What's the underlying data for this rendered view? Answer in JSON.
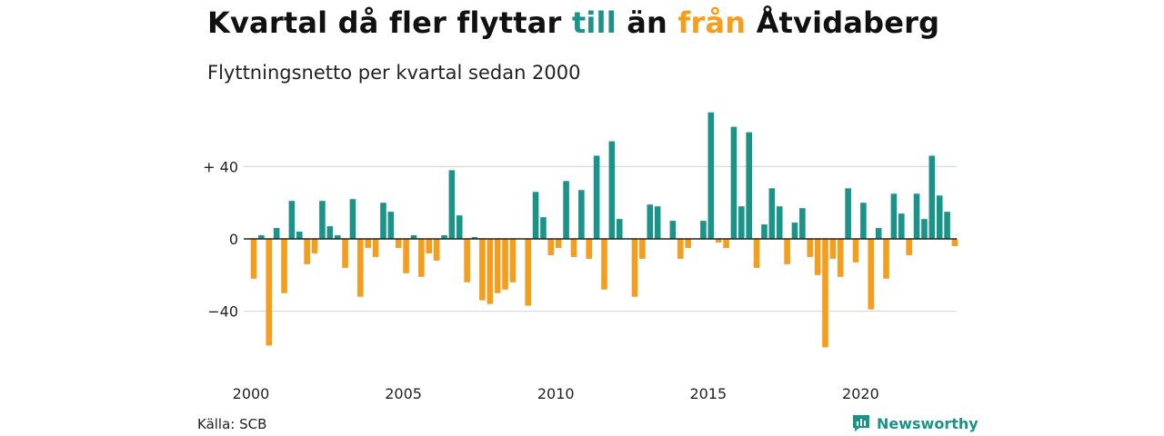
{
  "title": {
    "part1": "Kvartal då fler flyttar ",
    "till": "till",
    "part2": " än ",
    "fran": "från",
    "part3": " Åtvidaberg"
  },
  "subtitle": "Flyttningsnetto per kvartal sedan 2000",
  "source": "Källa: SCB",
  "brand": "Newsworthy",
  "colors": {
    "positive": "#1a9488",
    "negative": "#f59d1c",
    "grid": "#d9d9d9",
    "zero": "#222222"
  },
  "chart_data": {
    "type": "bar",
    "title": "Kvartal då fler flyttar till än från Åtvidaberg",
    "subtitle": "Flyttningsnetto per kvartal sedan 2000",
    "xlabel": "",
    "ylabel": "",
    "ylim": [
      -65,
      72
    ],
    "yticks": [
      {
        "value": 40,
        "label": "+ 40"
      },
      {
        "value": 0,
        "label": "0"
      },
      {
        "value": -40,
        "label": "−40"
      }
    ],
    "x_tick_labels": [
      "2000",
      "2005",
      "2010",
      "2015",
      "2020"
    ],
    "start_year": 2000,
    "grid": true,
    "categories": [
      "2000 K1",
      "2000 K2",
      "2000 K3",
      "2000 K4",
      "2001 K1",
      "2001 K2",
      "2001 K3",
      "2001 K4",
      "2002 K1",
      "2002 K2",
      "2002 K3",
      "2002 K4",
      "2003 K1",
      "2003 K2",
      "2003 K3",
      "2003 K4",
      "2004 K1",
      "2004 K2",
      "2004 K3",
      "2004 K4",
      "2005 K1",
      "2005 K2",
      "2005 K3",
      "2005 K4",
      "2006 K1",
      "2006 K2",
      "2006 K3",
      "2006 K4",
      "2007 K1",
      "2007 K2",
      "2007 K3",
      "2007 K4",
      "2008 K1",
      "2008 K2",
      "2008 K3",
      "2008 K4",
      "2009 K1",
      "2009 K2",
      "2009 K3",
      "2009 K4",
      "2010 K1",
      "2010 K2",
      "2010 K3",
      "2010 K4",
      "2011 K1",
      "2011 K2",
      "2011 K3",
      "2011 K4",
      "2012 K1",
      "2012 K2",
      "2012 K3",
      "2012 K4",
      "2013 K1",
      "2013 K2",
      "2013 K3",
      "2013 K4",
      "2014 K1",
      "2014 K2",
      "2014 K3",
      "2014 K4",
      "2015 K1",
      "2015 K2",
      "2015 K3",
      "2015 K4",
      "2016 K1",
      "2016 K2",
      "2016 K3",
      "2016 K4",
      "2017 K1",
      "2017 K2",
      "2017 K3",
      "2017 K4",
      "2018 K1",
      "2018 K2",
      "2018 K3",
      "2018 K4",
      "2019 K1",
      "2019 K2",
      "2019 K3",
      "2019 K4",
      "2020 K1",
      "2020 K2",
      "2020 K3",
      "2020 K4",
      "2021 K1",
      "2021 K2",
      "2021 K3",
      "2021 K4",
      "2022 K1",
      "2022 K2",
      "2022 K3",
      "2022 K4",
      "2023 K1"
    ],
    "values": [
      -22,
      2,
      -59,
      6,
      -30,
      21,
      4,
      -14,
      -8,
      21,
      7,
      2,
      -16,
      22,
      -32,
      -5,
      -10,
      20,
      15,
      -5,
      -19,
      2,
      -21,
      -8,
      -12,
      2,
      38,
      13,
      -24,
      1,
      -34,
      -36,
      -30,
      -28,
      -24,
      0,
      -37,
      26,
      12,
      -9,
      -5,
      32,
      -10,
      27,
      -11,
      46,
      -28,
      54,
      11,
      0,
      -32,
      -11,
      19,
      18,
      0,
      10,
      -11,
      -5,
      0,
      10,
      70,
      -2,
      -5,
      62,
      18,
      59,
      -16,
      8,
      28,
      18,
      -14,
      9,
      17,
      -10,
      -20,
      -60,
      -11,
      -21,
      28,
      -13,
      20,
      -39,
      6,
      -22,
      25,
      14,
      -9,
      25,
      11,
      46,
      24,
      15,
      -4
    ]
  }
}
